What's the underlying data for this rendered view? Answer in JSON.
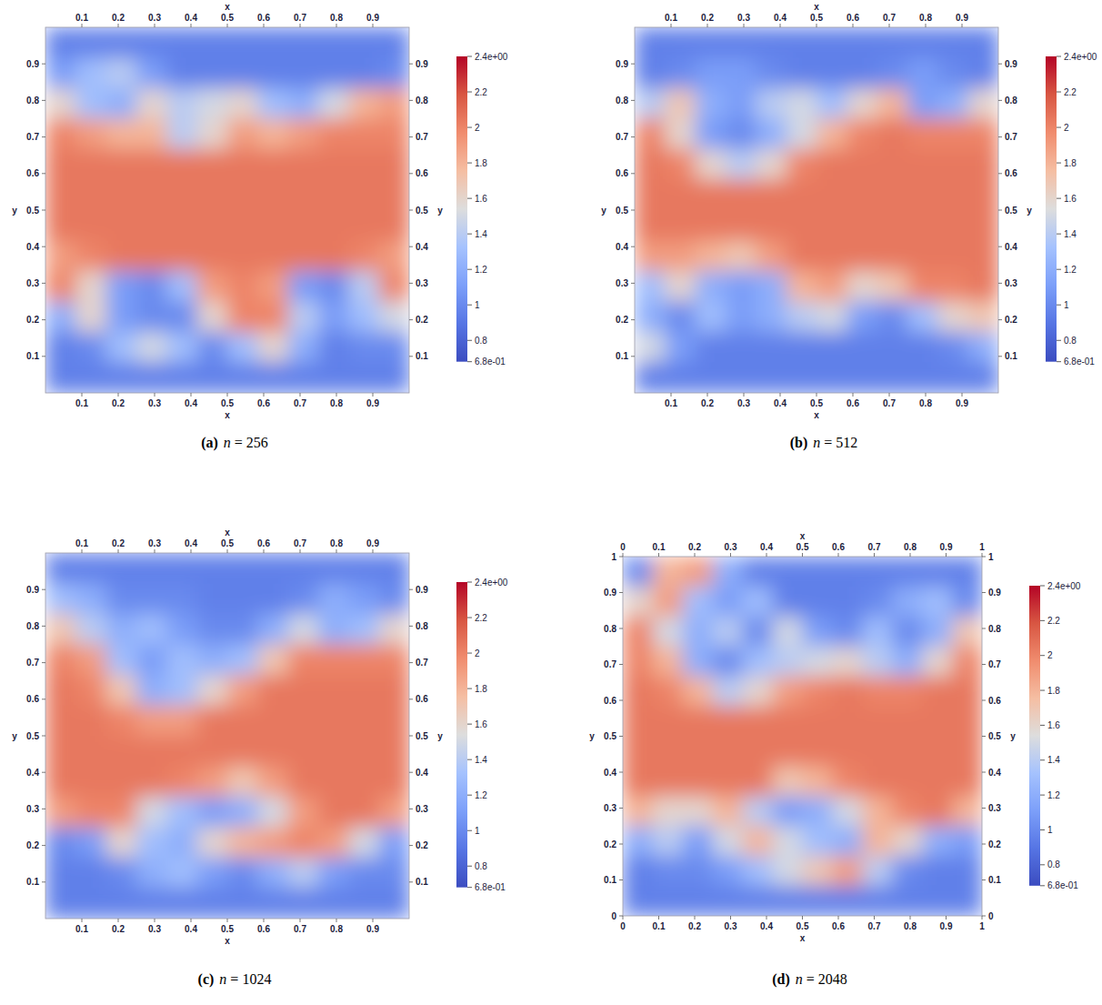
{
  "chart_data": [
    {
      "type": "heatmap",
      "label": "(a)",
      "title": "n = 256",
      "x_label": "x",
      "y_label": "y",
      "xlim": [
        0,
        1
      ],
      "ylim": [
        0,
        1
      ],
      "xticks": [
        0.1,
        0.2,
        0.3,
        0.4,
        0.5,
        0.6,
        0.7,
        0.8,
        0.9
      ],
      "yticks": [
        0.1,
        0.2,
        0.3,
        0.4,
        0.5,
        0.6,
        0.7,
        0.8,
        0.9
      ],
      "color_range": [
        0.68,
        2.4
      ],
      "color_ticks": [
        {
          "value": 2.4,
          "label": "2.4e+00"
        },
        2.2,
        2,
        1.8,
        1.6,
        1.4,
        1.2,
        1,
        0.8,
        {
          "value": 0.68,
          "label": "6.8e-01"
        }
      ],
      "cells": [
        [
          0.95,
          0.95,
          0.95,
          0.95,
          0.95,
          0.95,
          0.95,
          0.95,
          0.95,
          0.95,
          0.95,
          0.95
        ],
        [
          1.1,
          1.3,
          1.4,
          1.1,
          0.95,
          0.95,
          0.95,
          0.95,
          0.95,
          0.95,
          0.95,
          1.0
        ],
        [
          1.6,
          1.3,
          1.2,
          1.6,
          1.4,
          1.5,
          1.6,
          1.3,
          1.2,
          1.5,
          1.8,
          1.9
        ],
        [
          2.0,
          1.9,
          1.8,
          1.8,
          1.4,
          1.6,
          1.9,
          1.8,
          1.9,
          2.0,
          2.0,
          2.0
        ],
        [
          2.05,
          2.05,
          2.05,
          2.05,
          2.05,
          2.05,
          2.05,
          2.05,
          2.05,
          2.05,
          2.05,
          2.05
        ],
        [
          2.05,
          2.05,
          2.05,
          2.05,
          2.05,
          2.05,
          2.05,
          2.05,
          2.05,
          2.05,
          2.05,
          2.05
        ],
        [
          2.05,
          2.05,
          2.05,
          2.05,
          2.05,
          2.05,
          2.05,
          2.05,
          2.05,
          2.05,
          2.05,
          2.05
        ],
        [
          1.9,
          2.0,
          2.05,
          2.05,
          2.05,
          2.05,
          2.05,
          2.05,
          2.05,
          2.05,
          2.0,
          1.9
        ],
        [
          2.0,
          1.6,
          1.1,
          1.0,
          1.3,
          1.9,
          2.0,
          1.9,
          1.1,
          1.0,
          1.4,
          2.0
        ],
        [
          1.2,
          1.6,
          1.1,
          1.0,
          1.0,
          1.6,
          2.0,
          2.0,
          1.4,
          1.1,
          1.3,
          1.5
        ],
        [
          0.95,
          1.0,
          1.3,
          1.5,
          1.3,
          1.0,
          1.3,
          1.6,
          1.2,
          0.95,
          1.0,
          1.0
        ],
        [
          0.95,
          0.95,
          0.95,
          0.95,
          0.95,
          0.95,
          0.95,
          0.95,
          0.95,
          0.95,
          0.95,
          0.95
        ]
      ]
    },
    {
      "type": "heatmap",
      "label": "(b)",
      "title": "n = 512",
      "x_label": "x",
      "y_label": "y",
      "xlim": [
        0,
        1
      ],
      "ylim": [
        0,
        1
      ],
      "xticks": [
        0.1,
        0.2,
        0.3,
        0.4,
        0.5,
        0.6,
        0.7,
        0.8,
        0.9
      ],
      "yticks": [
        0.1,
        0.2,
        0.3,
        0.4,
        0.5,
        0.6,
        0.7,
        0.8,
        0.9
      ],
      "color_range": [
        0.68,
        2.4
      ],
      "color_ticks": [
        {
          "value": 2.4,
          "label": "2.4e+00"
        },
        2.2,
        2,
        1.8,
        1.6,
        1.4,
        1.2,
        1,
        0.8,
        {
          "value": 0.68,
          "label": "6.8e-01"
        }
      ],
      "cells": [
        [
          0.95,
          0.95,
          0.95,
          0.95,
          0.95,
          0.95,
          0.95,
          0.95,
          0.95,
          0.95,
          0.95,
          0.95
        ],
        [
          0.95,
          1.0,
          1.1,
          1.1,
          1.0,
          0.95,
          0.95,
          0.95,
          1.0,
          1.1,
          1.0,
          0.95
        ],
        [
          1.4,
          1.7,
          1.2,
          1.1,
          1.4,
          1.5,
          1.3,
          1.6,
          1.8,
          1.1,
          1.2,
          1.6
        ],
        [
          2.0,
          1.6,
          1.1,
          1.0,
          1.2,
          1.5,
          1.8,
          2.0,
          2.05,
          2.0,
          2.0,
          2.0
        ],
        [
          2.05,
          2.0,
          1.6,
          1.4,
          1.6,
          2.0,
          2.05,
          2.05,
          2.05,
          2.05,
          2.05,
          2.05
        ],
        [
          2.05,
          2.05,
          2.05,
          2.05,
          2.05,
          2.05,
          2.05,
          2.05,
          2.05,
          2.05,
          2.05,
          2.05
        ],
        [
          2.05,
          2.05,
          2.05,
          2.05,
          2.05,
          2.05,
          2.05,
          2.05,
          2.05,
          2.05,
          2.05,
          2.05
        ],
        [
          1.9,
          1.9,
          1.8,
          1.7,
          1.9,
          2.05,
          2.05,
          2.05,
          2.05,
          2.05,
          2.05,
          2.05
        ],
        [
          1.3,
          1.6,
          1.2,
          1.1,
          1.2,
          1.8,
          1.9,
          1.6,
          1.7,
          2.0,
          2.0,
          2.05
        ],
        [
          1.2,
          1.0,
          1.3,
          1.1,
          1.2,
          1.4,
          1.5,
          1.1,
          1.0,
          1.3,
          1.6,
          1.7
        ],
        [
          1.5,
          1.1,
          0.95,
          0.95,
          0.95,
          0.95,
          0.95,
          0.95,
          0.95,
          0.95,
          1.0,
          1.2
        ],
        [
          0.95,
          0.95,
          0.95,
          0.95,
          0.95,
          0.95,
          0.95,
          0.95,
          0.95,
          0.95,
          0.95,
          0.95
        ]
      ]
    },
    {
      "type": "heatmap",
      "label": "(c)",
      "title": "n = 1024",
      "x_label": "x",
      "y_label": "y",
      "xlim": [
        0,
        1
      ],
      "ylim": [
        0,
        1
      ],
      "xticks": [
        0.1,
        0.2,
        0.3,
        0.4,
        0.5,
        0.6,
        0.7,
        0.8,
        0.9
      ],
      "yticks": [
        0.1,
        0.2,
        0.3,
        0.4,
        0.5,
        0.6,
        0.7,
        0.8,
        0.9
      ],
      "color_range": [
        0.68,
        2.4
      ],
      "color_ticks": [
        {
          "value": 2.4,
          "label": "2.4e+00"
        },
        2.2,
        2,
        1.8,
        1.6,
        1.4,
        1.2,
        1,
        0.8,
        {
          "value": 0.68,
          "label": "6.8e-01"
        }
      ],
      "cells": [
        [
          0.95,
          0.95,
          0.95,
          0.95,
          0.95,
          0.95,
          0.95,
          0.95,
          0.95,
          0.95,
          0.95,
          0.95
        ],
        [
          1.3,
          1.2,
          1.0,
          1.0,
          1.0,
          0.95,
          0.95,
          0.95,
          1.0,
          1.2,
          1.1,
          1.0
        ],
        [
          1.7,
          1.4,
          1.2,
          1.3,
          1.1,
          1.0,
          1.0,
          1.2,
          1.5,
          1.2,
          1.3,
          1.6
        ],
        [
          2.0,
          1.9,
          1.3,
          1.1,
          1.3,
          1.2,
          1.3,
          1.7,
          2.0,
          2.0,
          2.0,
          2.0
        ],
        [
          2.05,
          2.0,
          1.7,
          1.2,
          1.3,
          1.6,
          1.9,
          2.05,
          2.05,
          2.05,
          2.05,
          2.05
        ],
        [
          2.05,
          2.05,
          2.0,
          1.9,
          1.9,
          2.05,
          2.05,
          2.05,
          2.05,
          2.05,
          2.05,
          2.05
        ],
        [
          2.05,
          2.05,
          2.05,
          2.05,
          2.05,
          2.05,
          2.05,
          2.05,
          2.05,
          2.05,
          2.05,
          2.05
        ],
        [
          2.05,
          2.05,
          2.05,
          2.05,
          2.0,
          1.9,
          1.7,
          1.9,
          2.05,
          2.05,
          2.05,
          2.05
        ],
        [
          1.9,
          2.0,
          2.0,
          1.5,
          1.3,
          1.1,
          1.2,
          1.5,
          1.9,
          2.05,
          2.05,
          1.9
        ],
        [
          1.0,
          1.1,
          1.6,
          1.3,
          1.2,
          1.6,
          1.8,
          1.9,
          2.0,
          1.9,
          1.5,
          1.1
        ],
        [
          0.95,
          0.95,
          1.0,
          1.2,
          1.3,
          1.1,
          1.0,
          1.2,
          1.4,
          1.1,
          1.0,
          1.0
        ],
        [
          0.95,
          0.95,
          0.95,
          0.95,
          0.95,
          0.95,
          0.95,
          0.95,
          0.95,
          0.95,
          0.95,
          0.95
        ]
      ]
    },
    {
      "type": "heatmap",
      "label": "(d)",
      "title": "n = 2048",
      "x_label": "x",
      "y_label": "y",
      "xlim": [
        0,
        1
      ],
      "ylim": [
        0,
        1
      ],
      "xticks": [
        0,
        0.1,
        0.2,
        0.3,
        0.4,
        0.5,
        0.6,
        0.7,
        0.8,
        0.9,
        1
      ],
      "yticks": [
        0,
        0.1,
        0.2,
        0.3,
        0.4,
        0.5,
        0.6,
        0.7,
        0.8,
        0.9,
        1
      ],
      "color_range": [
        0.68,
        2.4
      ],
      "color_ticks": [
        {
          "value": 2.4,
          "label": "2.4e+00"
        },
        2.2,
        2,
        1.8,
        1.6,
        1.4,
        1.2,
        1,
        0.8,
        {
          "value": 0.68,
          "label": "6.8e-01"
        }
      ],
      "cells": [
        [
          1.0,
          1.8,
          1.9,
          1.2,
          0.95,
          0.95,
          0.95,
          0.95,
          0.95,
          0.95,
          0.95,
          0.95
        ],
        [
          1.6,
          1.9,
          1.3,
          1.1,
          1.3,
          0.95,
          0.95,
          0.95,
          1.0,
          1.2,
          1.3,
          1.0
        ],
        [
          2.0,
          1.5,
          1.2,
          1.4,
          1.0,
          1.5,
          1.1,
          1.0,
          1.3,
          1.0,
          1.2,
          1.7
        ],
        [
          2.0,
          1.8,
          1.2,
          1.0,
          1.3,
          1.4,
          1.5,
          1.6,
          1.4,
          1.2,
          1.6,
          2.0
        ],
        [
          2.05,
          2.0,
          1.8,
          1.4,
          1.6,
          1.9,
          2.0,
          2.05,
          2.0,
          2.0,
          2.05,
          2.05
        ],
        [
          2.05,
          2.05,
          2.05,
          2.05,
          2.05,
          2.05,
          2.05,
          2.05,
          2.05,
          2.05,
          2.05,
          2.05
        ],
        [
          2.05,
          2.05,
          2.05,
          2.05,
          2.05,
          2.05,
          2.05,
          2.05,
          2.05,
          2.05,
          2.05,
          2.05
        ],
        [
          2.05,
          2.05,
          2.05,
          2.05,
          2.05,
          1.7,
          1.8,
          2.0,
          2.05,
          2.05,
          2.05,
          2.05
        ],
        [
          1.8,
          1.6,
          1.6,
          1.8,
          1.4,
          1.1,
          1.2,
          1.5,
          1.8,
          2.0,
          2.05,
          1.8
        ],
        [
          1.2,
          1.4,
          1.1,
          1.5,
          1.8,
          1.5,
          1.3,
          1.2,
          1.8,
          1.6,
          1.2,
          1.1
        ],
        [
          0.95,
          1.0,
          1.0,
          1.1,
          1.3,
          1.5,
          1.7,
          1.9,
          1.4,
          1.0,
          0.95,
          0.95
        ],
        [
          0.95,
          0.95,
          0.95,
          0.95,
          0.95,
          0.95,
          0.95,
          0.95,
          0.95,
          0.95,
          0.95,
          0.95
        ]
      ]
    }
  ]
}
